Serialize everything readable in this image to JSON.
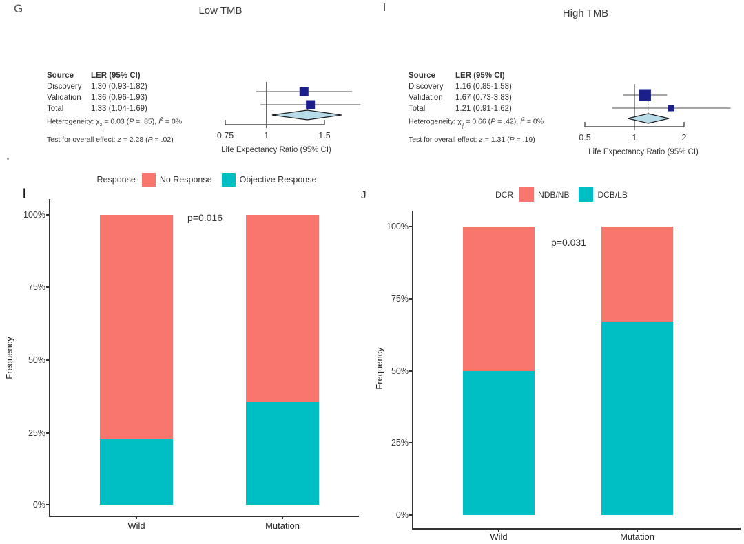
{
  "colors": {
    "salmon": "#F8766D",
    "teal": "#00BFC4",
    "square_navy": "#1a1f8b",
    "diamond_fill": "#b8dcea",
    "diamond_stroke": "#1b1b1b",
    "line_gray": "#4c4c4c",
    "text_dark": "#3a3a3a"
  },
  "panels": {
    "g": {
      "label": "G",
      "title": "Low TMB",
      "table": {
        "header": {
          "source": "Source",
          "ler": "LER (95% CI)"
        },
        "rows": [
          {
            "source": "Discovery",
            "ler": "1.30 (0.93-1.82)"
          },
          {
            "source": "Validation",
            "ler": "1.36 (0.96-1.93)"
          },
          {
            "source": "Total",
            "ler": "1.33 (1.04-1.69)"
          }
        ],
        "het": {
          "prefix": "Heterogeneity: ",
          "chi": "χ",
          "sup": "2",
          "sub": "1",
          "mid": " = 0.03 (",
          "p_sym": "P",
          "mid2": " = .85), ",
          "i_sym": "I",
          "i_sup": "2",
          "end": " = 0%"
        },
        "test": {
          "prefix": "Test for overall effect: ",
          "z_sym": "z",
          "mid": " = 2.28 (",
          "p_sym": "P",
          "end": " = .02)"
        }
      }
    },
    "i_forest": {
      "label": "I",
      "title": "High TMB",
      "table": {
        "header": {
          "source": "Source",
          "ler": "LER (95% CI)"
        },
        "rows": [
          {
            "source": "Discovery",
            "ler": "1.16 (0.85-1.58)"
          },
          {
            "source": "Validation",
            "ler": "1.67 (0.73-3.83)"
          },
          {
            "source": "Total",
            "ler": "1.21 (0.91-1.62)"
          }
        ],
        "het": {
          "prefix": "Heterogeneity: ",
          "chi": "χ",
          "sup": "2",
          "sub": "1",
          "mid": " = 0.66 (",
          "p_sym": "P",
          "mid2": " = .42), ",
          "i_sym": "I",
          "i_sup": "2",
          "end": " = 0%"
        },
        "test": {
          "prefix": "Test for overall effect: ",
          "z_sym": "z",
          "mid": " = 1.31 (",
          "p_sym": "P",
          "end": " = .19)"
        }
      }
    },
    "i_bar": {
      "label": "I"
    },
    "j_bar": {
      "label": "J"
    }
  },
  "chart_data": [
    {
      "id": "forest-low-tmb",
      "type": "forest",
      "title": "Low TMB",
      "xlabel": "Life Expectancy Ratio (95% CI)",
      "x_scale": "log",
      "x_ticks": [
        0.75,
        1,
        1.5
      ],
      "x_tick_labels": [
        "0.75",
        "1",
        "1.5"
      ],
      "studies": [
        {
          "name": "Discovery",
          "est": 1.3,
          "lo": 0.93,
          "hi": 1.82
        },
        {
          "name": "Validation",
          "est": 1.36,
          "lo": 0.96,
          "hi": 1.93
        }
      ],
      "total": {
        "name": "Total",
        "est": 1.33,
        "lo": 1.04,
        "hi": 1.69
      },
      "heterogeneity": {
        "chi2": 0.03,
        "df": 1,
        "p": 0.85,
        "i2": "0%"
      },
      "overall_effect": {
        "z": 2.28,
        "p": 0.02
      }
    },
    {
      "id": "forest-high-tmb",
      "type": "forest",
      "title": "High TMB",
      "xlabel": "Life Expectancy Ratio (95% CI)",
      "x_scale": "log",
      "x_ticks": [
        0.5,
        1,
        2
      ],
      "x_tick_labels": [
        "0.5",
        "1",
        "2"
      ],
      "studies": [
        {
          "name": "Discovery",
          "est": 1.16,
          "lo": 0.85,
          "hi": 1.58
        },
        {
          "name": "Validation",
          "est": 1.67,
          "lo": 0.73,
          "hi": 3.83
        }
      ],
      "total": {
        "name": "Total",
        "est": 1.21,
        "lo": 0.91,
        "hi": 1.62
      },
      "heterogeneity": {
        "chi2": 0.66,
        "df": 1,
        "p": 0.42,
        "i2": "0%"
      },
      "overall_effect": {
        "z": 1.31,
        "p": 0.19
      }
    },
    {
      "id": "bar-response",
      "type": "bar",
      "stacked": true,
      "categories": [
        "Wild",
        "Mutation"
      ],
      "series": [
        {
          "name": "Objective Response",
          "color_key": "teal",
          "values": [
            22.5,
            35.5
          ]
        },
        {
          "name": "No Response",
          "color_key": "salmon",
          "values": [
            77.5,
            64.5
          ]
        }
      ],
      "ylabel": "Frequency",
      "y_ticks": [
        "0%",
        "25%",
        "50%",
        "75%",
        "100%"
      ],
      "ylim": [
        0,
        100
      ],
      "annotation": "p=0.016",
      "legend": {
        "title": "Response",
        "items": [
          {
            "label": "No Response",
            "color_key": "salmon"
          },
          {
            "label": "Objective Response",
            "color_key": "teal"
          }
        ]
      }
    },
    {
      "id": "bar-dcr",
      "type": "bar",
      "stacked": true,
      "categories": [
        "Wild",
        "Mutation"
      ],
      "series": [
        {
          "name": "DCB/LB",
          "color_key": "teal",
          "values": [
            50,
            67
          ]
        },
        {
          "name": "NDB/NB",
          "color_key": "salmon",
          "values": [
            50,
            33
          ]
        }
      ],
      "ylabel": "Frequency",
      "y_ticks": [
        "0%",
        "25%",
        "50%",
        "75%",
        "100%"
      ],
      "ylim": [
        0,
        100
      ],
      "annotation": "p=0.031",
      "legend": {
        "title": "DCR",
        "items": [
          {
            "label": "NDB/NB",
            "color_key": "salmon"
          },
          {
            "label": "DCB/LB",
            "color_key": "teal"
          }
        ]
      }
    }
  ]
}
